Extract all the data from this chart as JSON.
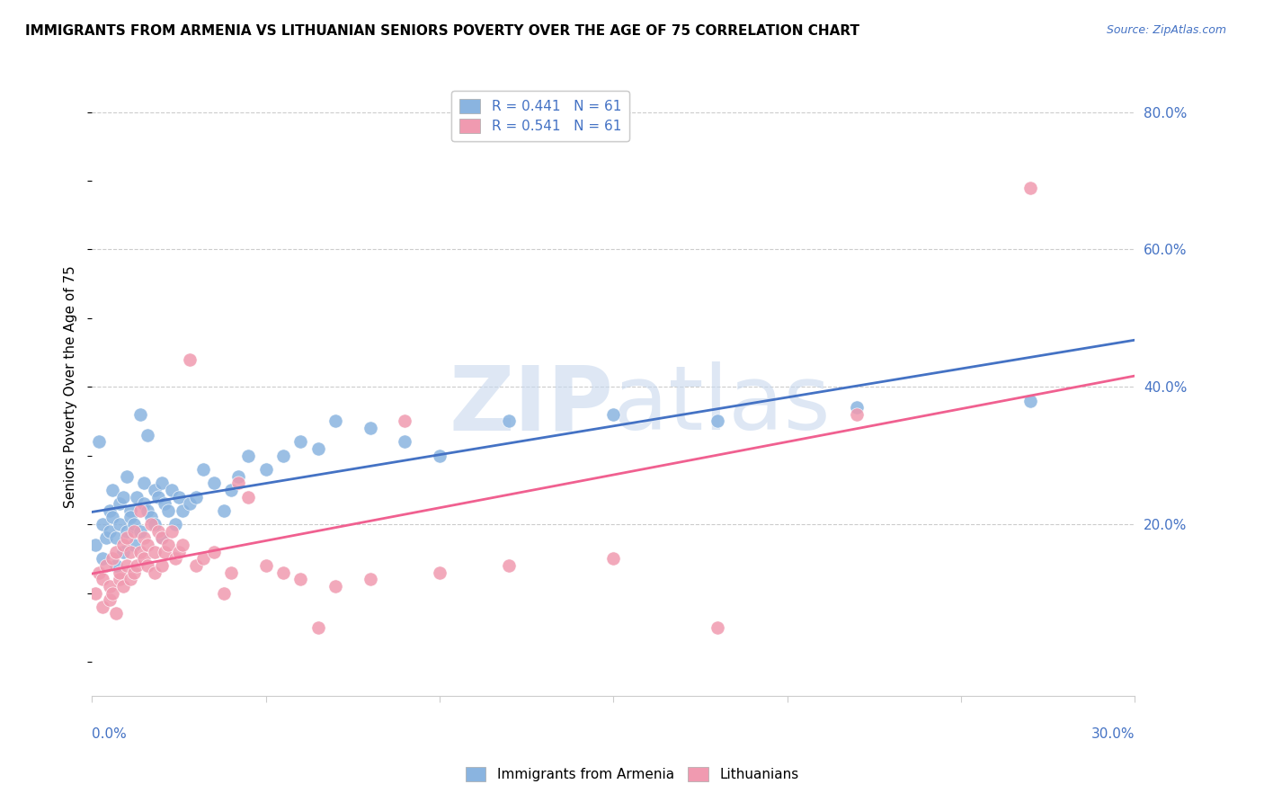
{
  "title": "IMMIGRANTS FROM ARMENIA VS LITHUANIAN SENIORS POVERTY OVER THE AGE OF 75 CORRELATION CHART",
  "source": "Source: ZipAtlas.com",
  "ylabel": "Seniors Poverty Over the Age of 75",
  "series1_color": "#8ab4e0",
  "series2_color": "#f09ab0",
  "line1_color": "#4472C4",
  "line2_color": "#f06090",
  "tick_color": "#4472C4",
  "R1": 0.441,
  "R2": 0.541,
  "N1": 61,
  "N2": 61,
  "xmin": 0.0,
  "xmax": 0.3,
  "ymin": -0.05,
  "ymax": 0.85,
  "Armenia_x": [
    0.001,
    0.002,
    0.003,
    0.003,
    0.004,
    0.005,
    0.005,
    0.006,
    0.006,
    0.007,
    0.007,
    0.008,
    0.008,
    0.009,
    0.009,
    0.01,
    0.01,
    0.011,
    0.011,
    0.012,
    0.012,
    0.013,
    0.014,
    0.014,
    0.015,
    0.015,
    0.016,
    0.016,
    0.017,
    0.018,
    0.018,
    0.019,
    0.02,
    0.02,
    0.021,
    0.022,
    0.023,
    0.024,
    0.025,
    0.026,
    0.028,
    0.03,
    0.032,
    0.035,
    0.038,
    0.04,
    0.042,
    0.045,
    0.05,
    0.055,
    0.06,
    0.065,
    0.07,
    0.08,
    0.09,
    0.1,
    0.12,
    0.15,
    0.18,
    0.22,
    0.27
  ],
  "Armenia_y": [
    0.17,
    0.32,
    0.2,
    0.15,
    0.18,
    0.22,
    0.19,
    0.21,
    0.25,
    0.18,
    0.14,
    0.23,
    0.2,
    0.16,
    0.24,
    0.19,
    0.27,
    0.22,
    0.21,
    0.2,
    0.17,
    0.24,
    0.36,
    0.19,
    0.23,
    0.26,
    0.33,
    0.22,
    0.21,
    0.25,
    0.2,
    0.24,
    0.26,
    0.18,
    0.23,
    0.22,
    0.25,
    0.2,
    0.24,
    0.22,
    0.23,
    0.24,
    0.28,
    0.26,
    0.22,
    0.25,
    0.27,
    0.3,
    0.28,
    0.3,
    0.32,
    0.31,
    0.35,
    0.34,
    0.32,
    0.3,
    0.35,
    0.36,
    0.35,
    0.37,
    0.38
  ],
  "Lithuanian_x": [
    0.001,
    0.002,
    0.003,
    0.003,
    0.004,
    0.005,
    0.005,
    0.006,
    0.006,
    0.007,
    0.007,
    0.008,
    0.008,
    0.009,
    0.009,
    0.01,
    0.01,
    0.011,
    0.011,
    0.012,
    0.012,
    0.013,
    0.014,
    0.014,
    0.015,
    0.015,
    0.016,
    0.016,
    0.017,
    0.018,
    0.018,
    0.019,
    0.02,
    0.02,
    0.021,
    0.022,
    0.023,
    0.024,
    0.025,
    0.026,
    0.028,
    0.03,
    0.032,
    0.035,
    0.038,
    0.04,
    0.042,
    0.045,
    0.05,
    0.055,
    0.06,
    0.065,
    0.07,
    0.08,
    0.09,
    0.1,
    0.12,
    0.15,
    0.18,
    0.22,
    0.27
  ],
  "Lithuanian_y": [
    0.1,
    0.13,
    0.12,
    0.08,
    0.14,
    0.09,
    0.11,
    0.15,
    0.1,
    0.07,
    0.16,
    0.12,
    0.13,
    0.17,
    0.11,
    0.18,
    0.14,
    0.16,
    0.12,
    0.13,
    0.19,
    0.14,
    0.16,
    0.22,
    0.15,
    0.18,
    0.17,
    0.14,
    0.2,
    0.16,
    0.13,
    0.19,
    0.18,
    0.14,
    0.16,
    0.17,
    0.19,
    0.15,
    0.16,
    0.17,
    0.44,
    0.14,
    0.15,
    0.16,
    0.1,
    0.13,
    0.26,
    0.24,
    0.14,
    0.13,
    0.12,
    0.05,
    0.11,
    0.12,
    0.35,
    0.13,
    0.14,
    0.15,
    0.05,
    0.36,
    0.69
  ]
}
